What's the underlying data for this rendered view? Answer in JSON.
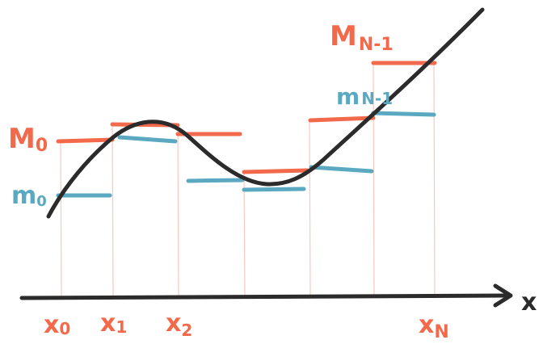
{
  "labels": {
    "M0": "M",
    "M0_sub": "0",
    "m0": "m",
    "m0_sub": "0",
    "MN1": "M",
    "MN1_sub": "N-1",
    "mN1": "m",
    "mN1_sub": "N-1",
    "x0": "x",
    "x0_sub": "0",
    "x1": "x",
    "x1_sub": "1",
    "x2": "x",
    "x2_sub": "2",
    "xN": "x",
    "xN_sub": "N",
    "axis": "x"
  },
  "colors": {
    "upper": "#f26a4b",
    "lower": "#5aa9c0",
    "curve": "#2b2b2b",
    "gridline": "#f7c9bf"
  }
}
